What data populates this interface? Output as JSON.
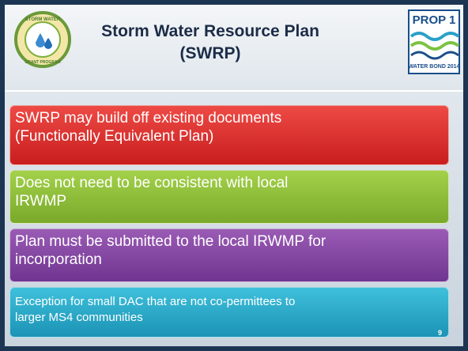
{
  "header": {
    "title": "Storm Water Resource Plan (SWRP)",
    "left_logo": {
      "top": "STORM WATER",
      "bottom": "GRANT PROGRAM"
    },
    "right_logo": {
      "top": "PROP 1",
      "bottom": "WATER BOND 2014"
    }
  },
  "bullets": [
    {
      "lines": [
        "SWRP may build off existing documents",
        "(Functionally Equivalent Plan)"
      ]
    },
    {
      "lines": [
        "Does not need to be consistent with local",
        "IRWMP"
      ]
    },
    {
      "lines": [
        "Plan must be submitted to the local IRWMP for",
        "incorporation"
      ]
    },
    {
      "lines": [
        "Exception for small DAC that are not co-permittees to",
        "larger MS4 communities"
      ]
    }
  ],
  "page_number": "9"
}
